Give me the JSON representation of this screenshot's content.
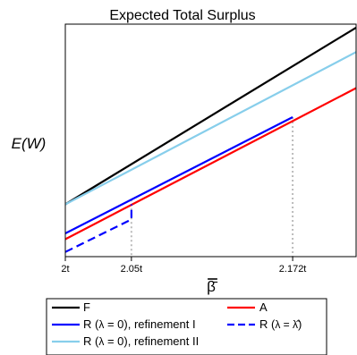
{
  "chart_data": {
    "type": "line",
    "title": "Expected Total Surplus",
    "ylabel": "E(W)",
    "xlabel": "β̄",
    "xlim": [
      2.0,
      2.22
    ],
    "ylim": [
      0,
      1
    ],
    "x_ticks": [
      {
        "value": 2.0,
        "label": "2t"
      },
      {
        "value": 2.05,
        "label": "2.05t"
      },
      {
        "value": 2.172,
        "label": "2.172t"
      }
    ],
    "vlines": [
      2.05,
      2.172
    ],
    "series": [
      {
        "name": "F",
        "color": "#000000",
        "dash": "solid",
        "points": [
          [
            2.0,
            0.225
          ],
          [
            2.22,
            0.985
          ]
        ]
      },
      {
        "name": "R (λ = 0), refinement II",
        "color": "#87ceeb",
        "dash": "solid",
        "points": [
          [
            2.0,
            0.225
          ],
          [
            2.22,
            0.88
          ]
        ]
      },
      {
        "name": "A",
        "color": "#ff0000",
        "dash": "solid",
        "points": [
          [
            2.0,
            0.075
          ],
          [
            2.22,
            0.725
          ]
        ]
      },
      {
        "name": "R (λ = 0), refinement I",
        "color": "#0000ff",
        "dash": "solid",
        "points": [
          [
            2.0,
            0.1
          ],
          [
            2.172,
            0.6
          ]
        ]
      },
      {
        "name": "R (λ = λ̂)",
        "color": "#0000ff",
        "dash": "dashed",
        "points": [
          [
            2.0,
            0.02
          ],
          [
            2.05,
            0.16
          ],
          [
            2.05,
            0.225
          ]
        ]
      }
    ],
    "legend": {
      "position": "bottom",
      "items": [
        {
          "label_pre": "F",
          "label_sym": "",
          "label_post": "",
          "color": "#000000",
          "dash": "solid"
        },
        {
          "label_pre": "A",
          "label_sym": "",
          "label_post": "",
          "color": "#ff0000",
          "dash": "solid"
        },
        {
          "label_pre": "R (",
          "label_sym": "λ",
          "label_post": " = 0), refinement I",
          "color": "#0000ff",
          "dash": "solid"
        },
        {
          "label_pre": "R (",
          "label_sym": "λ = λ̂",
          "label_post": ")",
          "color": "#0000ff",
          "dash": "dashed"
        },
        {
          "label_pre": "R (",
          "label_sym": "λ",
          "label_post": " = 0), refinement II",
          "color": "#87ceeb",
          "dash": "solid"
        }
      ]
    },
    "grid": false
  }
}
